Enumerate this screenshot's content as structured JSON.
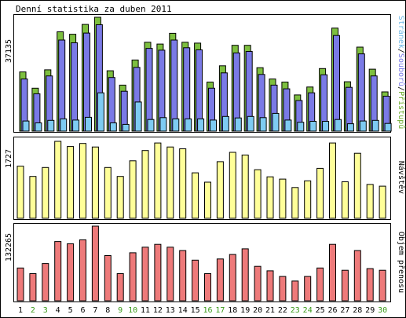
{
  "title": "Denní statistika za duben 2011",
  "colors": {
    "frame": "#000000",
    "hits": "#7dbf3f",
    "files": "#7a7ae6",
    "pages": "#7ecbf2",
    "visits": "#ffff99",
    "kbytes": "#ee7a7a",
    "weekend_day": "#3a9a1a",
    "weekday": "#000000"
  },
  "legend": {
    "hits": "Přístupů",
    "files": "Souborů",
    "pages": "Stránek",
    "separator": "/",
    "visits": "Návštěv",
    "kbytes": "Objem přenosu"
  },
  "chart_data": [
    {
      "type": "bar",
      "name": "hits-files-pages",
      "categories": [
        "1",
        "2",
        "3",
        "4",
        "5",
        "6",
        "7",
        "8",
        "9",
        "10",
        "11",
        "12",
        "13",
        "14",
        "15",
        "16",
        "17",
        "18",
        "19",
        "20",
        "21",
        "22",
        "23",
        "24",
        "25",
        "26",
        "27",
        "28",
        "29",
        "30"
      ],
      "y_max_label": "37135",
      "ylim": [
        0,
        37135
      ],
      "series": [
        {
          "name": "Přístupů",
          "values": [
            19300,
            14000,
            20000,
            32400,
            31600,
            34800,
            37135,
            19700,
            15000,
            23200,
            29000,
            28400,
            31900,
            29000,
            28700,
            16000,
            21300,
            28000,
            28000,
            20700,
            17000,
            16000,
            11800,
            14400,
            20400,
            33600,
            16100,
            27400,
            20200,
            12800
          ]
        },
        {
          "name": "Souborů",
          "values": [
            17000,
            12200,
            18000,
            29700,
            28800,
            32000,
            34700,
            17500,
            13000,
            20800,
            27000,
            26400,
            29700,
            27200,
            26500,
            14000,
            19000,
            25500,
            26000,
            18500,
            15000,
            13800,
            10000,
            12500,
            18400,
            31200,
            14300,
            25200,
            18000,
            11400
          ]
        },
        {
          "name": "Stránek",
          "values": [
            3300,
            2700,
            3500,
            4000,
            3600,
            4500,
            12500,
            2700,
            2200,
            9500,
            3800,
            4400,
            4000,
            4000,
            4000,
            3600,
            4800,
            4300,
            4800,
            4400,
            5800,
            3600,
            2900,
            3200,
            3200,
            3800,
            2400,
            3300,
            3500,
            2500
          ]
        }
      ]
    },
    {
      "type": "bar",
      "name": "visits",
      "categories": [
        "1",
        "2",
        "3",
        "4",
        "5",
        "6",
        "7",
        "8",
        "9",
        "10",
        "11",
        "12",
        "13",
        "14",
        "15",
        "16",
        "17",
        "18",
        "19",
        "20",
        "21",
        "22",
        "23",
        "24",
        "25",
        "26",
        "27",
        "28",
        "29",
        "30"
      ],
      "y_max_label": "1727",
      "ylim": [
        0,
        1727
      ],
      "series": [
        {
          "name": "Návštěv",
          "values": [
            1170,
            940,
            1140,
            1727,
            1610,
            1680,
            1600,
            1140,
            940,
            1290,
            1520,
            1690,
            1600,
            1560,
            1020,
            810,
            1270,
            1480,
            1420,
            1090,
            930,
            880,
            690,
            840,
            1120,
            1690,
            820,
            1460,
            760,
            720
          ]
        }
      ]
    },
    {
      "type": "bar",
      "name": "kbytes",
      "categories": [
        "1",
        "2",
        "3",
        "4",
        "5",
        "6",
        "7",
        "8",
        "9",
        "10",
        "11",
        "12",
        "13",
        "14",
        "15",
        "16",
        "17",
        "18",
        "19",
        "20",
        "21",
        "22",
        "23",
        "24",
        "25",
        "26",
        "27",
        "28",
        "29",
        "30"
      ],
      "y_max_label": "132265",
      "ylim": [
        0,
        132265
      ],
      "series": [
        {
          "name": "Objem přenosu",
          "values": [
            58000,
            48000,
            66000,
            105000,
            101000,
            108000,
            132265,
            80000,
            48000,
            85000,
            95000,
            100000,
            95000,
            89000,
            72000,
            48000,
            74000,
            82000,
            92000,
            61000,
            53000,
            43000,
            35000,
            43000,
            58000,
            100000,
            54000,
            89000,
            57000,
            54000
          ]
        }
      ]
    }
  ],
  "weekend_days": [
    "2",
    "3",
    "9",
    "10",
    "16",
    "17",
    "23",
    "24",
    "30"
  ]
}
